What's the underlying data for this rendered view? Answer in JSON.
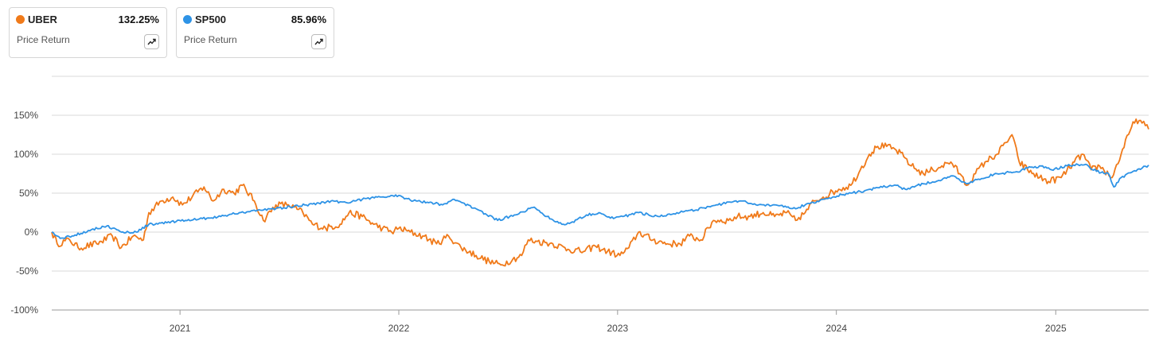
{
  "cards": [
    {
      "ticker": "UBER",
      "value": "132.25%",
      "subtitle": "Price Return",
      "color": "#f07a1a",
      "icon": "trending-up-icon"
    },
    {
      "ticker": "SP500",
      "value": "85.96%",
      "subtitle": "Price Return",
      "color": "#2e93e6",
      "icon": "trending-up-icon"
    }
  ],
  "chart_data": {
    "type": "line",
    "y_unit": "%",
    "ylim": [
      -100,
      200
    ],
    "y_ticks": [
      -100,
      -50,
      0,
      50,
      100,
      150
    ],
    "y_tick_labels": [
      "-100%",
      "-50%",
      "0%",
      "50%",
      "100%",
      "150%"
    ],
    "x_ticks": [
      "2021-01-01",
      "2022-01-01",
      "2023-01-01",
      "2024-01-01",
      "2025-01-01"
    ],
    "x_tick_labels": [
      "2021",
      "2022",
      "2023",
      "2024",
      "2025"
    ],
    "xlim": [
      "2020-06-01",
      "2025-06-05"
    ],
    "grid": true,
    "series": [
      {
        "name": "UBER",
        "color": "#f07a1a",
        "points": [
          [
            "2020-06-01",
            0
          ],
          [
            "2020-06-10",
            -15
          ],
          [
            "2020-07-01",
            -10
          ],
          [
            "2020-07-15",
            -20
          ],
          [
            "2020-08-15",
            -15
          ],
          [
            "2020-09-10",
            -5
          ],
          [
            "2020-09-25",
            -20
          ],
          [
            "2020-10-15",
            -5
          ],
          [
            "2020-11-01",
            -10
          ],
          [
            "2020-11-10",
            25
          ],
          [
            "2020-12-01",
            40
          ],
          [
            "2020-12-20",
            45
          ],
          [
            "2021-01-05",
            35
          ],
          [
            "2021-02-10",
            58
          ],
          [
            "2021-02-25",
            40
          ],
          [
            "2021-03-15",
            55
          ],
          [
            "2021-04-01",
            50
          ],
          [
            "2021-04-15",
            60
          ],
          [
            "2021-05-05",
            40
          ],
          [
            "2021-05-20",
            15
          ],
          [
            "2021-06-10",
            35
          ],
          [
            "2021-07-01",
            35
          ],
          [
            "2021-07-25",
            25
          ],
          [
            "2021-08-10",
            10
          ],
          [
            "2021-09-01",
            5
          ],
          [
            "2021-09-25",
            10
          ],
          [
            "2021-10-10",
            25
          ],
          [
            "2021-11-01",
            20
          ],
          [
            "2021-11-20",
            10
          ],
          [
            "2021-12-05",
            5
          ],
          [
            "2021-12-20",
            0
          ],
          [
            "2022-01-01",
            5
          ],
          [
            "2022-01-20",
            0
          ],
          [
            "2022-02-10",
            -5
          ],
          [
            "2022-03-05",
            -15
          ],
          [
            "2022-03-25",
            -5
          ],
          [
            "2022-04-15",
            -20
          ],
          [
            "2022-05-10",
            -30
          ],
          [
            "2022-06-01",
            -38
          ],
          [
            "2022-06-20",
            -42
          ],
          [
            "2022-07-10",
            -35
          ],
          [
            "2022-07-25",
            -30
          ],
          [
            "2022-08-05",
            -10
          ],
          [
            "2022-08-20",
            -12
          ],
          [
            "2022-09-15",
            -15
          ],
          [
            "2022-10-10",
            -22
          ],
          [
            "2022-11-05",
            -25
          ],
          [
            "2022-11-25",
            -18
          ],
          [
            "2022-12-15",
            -25
          ],
          [
            "2023-01-05",
            -30
          ],
          [
            "2023-01-20",
            -20
          ],
          [
            "2023-02-05",
            0
          ],
          [
            "2023-03-01",
            -10
          ],
          [
            "2023-03-25",
            -15
          ],
          [
            "2023-04-15",
            -15
          ],
          [
            "2023-05-01",
            -5
          ],
          [
            "2023-05-20",
            -10
          ],
          [
            "2023-06-10",
            15
          ],
          [
            "2023-07-05",
            15
          ],
          [
            "2023-07-20",
            20
          ],
          [
            "2023-08-10",
            20
          ],
          [
            "2023-09-01",
            25
          ],
          [
            "2023-09-20",
            20
          ],
          [
            "2023-10-10",
            25
          ],
          [
            "2023-10-25",
            15
          ],
          [
            "2023-11-10",
            25
          ],
          [
            "2023-11-25",
            40
          ],
          [
            "2023-12-10",
            45
          ],
          [
            "2024-01-05",
            55
          ],
          [
            "2024-01-25",
            60
          ],
          [
            "2024-02-10",
            80
          ],
          [
            "2024-02-25",
            100
          ],
          [
            "2024-03-10",
            110
          ],
          [
            "2024-03-25",
            110
          ],
          [
            "2024-04-10",
            105
          ],
          [
            "2024-04-25",
            95
          ],
          [
            "2024-05-05",
            85
          ],
          [
            "2024-05-25",
            75
          ],
          [
            "2024-06-10",
            80
          ],
          [
            "2024-06-25",
            85
          ],
          [
            "2024-07-10",
            90
          ],
          [
            "2024-07-25",
            75
          ],
          [
            "2024-08-05",
            60
          ],
          [
            "2024-08-20",
            75
          ],
          [
            "2024-09-05",
            90
          ],
          [
            "2024-09-25",
            100
          ],
          [
            "2024-10-10",
            115
          ],
          [
            "2024-10-20",
            125
          ],
          [
            "2024-11-01",
            90
          ],
          [
            "2024-11-15",
            80
          ],
          [
            "2024-12-05",
            70
          ],
          [
            "2024-12-20",
            65
          ],
          [
            "2025-01-10",
            70
          ],
          [
            "2025-02-01",
            90
          ],
          [
            "2025-02-15",
            100
          ],
          [
            "2025-03-01",
            80
          ],
          [
            "2025-03-15",
            85
          ],
          [
            "2025-04-05",
            70
          ],
          [
            "2025-04-20",
            100
          ],
          [
            "2025-05-05",
            130
          ],
          [
            "2025-05-15",
            145
          ],
          [
            "2025-05-25",
            140
          ],
          [
            "2025-06-05",
            132
          ]
        ]
      },
      {
        "name": "SP500",
        "color": "#2e93e6",
        "points": [
          [
            "2020-06-01",
            0
          ],
          [
            "2020-06-15",
            -8
          ],
          [
            "2020-07-05",
            -5
          ],
          [
            "2020-08-01",
            2
          ],
          [
            "2020-09-01",
            8
          ],
          [
            "2020-09-25",
            0
          ],
          [
            "2020-10-20",
            0
          ],
          [
            "2020-11-10",
            10
          ],
          [
            "2020-12-10",
            12
          ],
          [
            "2021-01-10",
            15
          ],
          [
            "2021-02-15",
            18
          ],
          [
            "2021-03-10",
            20
          ],
          [
            "2021-04-10",
            25
          ],
          [
            "2021-05-10",
            28
          ],
          [
            "2021-06-10",
            30
          ],
          [
            "2021-07-10",
            33
          ],
          [
            "2021-08-10",
            36
          ],
          [
            "2021-09-10",
            40
          ],
          [
            "2021-10-05",
            38
          ],
          [
            "2021-11-01",
            42
          ],
          [
            "2021-12-01",
            45
          ],
          [
            "2022-01-01",
            47
          ],
          [
            "2022-01-25",
            40
          ],
          [
            "2022-02-25",
            38
          ],
          [
            "2022-03-15",
            35
          ],
          [
            "2022-04-01",
            42
          ],
          [
            "2022-05-10",
            30
          ],
          [
            "2022-06-15",
            15
          ],
          [
            "2022-07-05",
            20
          ],
          [
            "2022-08-15",
            32
          ],
          [
            "2022-09-05",
            20
          ],
          [
            "2022-09-30",
            10
          ],
          [
            "2022-10-15",
            12
          ],
          [
            "2022-11-10",
            22
          ],
          [
            "2022-12-01",
            25
          ],
          [
            "2022-12-20",
            18
          ],
          [
            "2023-01-10",
            20
          ],
          [
            "2023-02-05",
            25
          ],
          [
            "2023-03-10",
            20
          ],
          [
            "2023-04-10",
            25
          ],
          [
            "2023-05-10",
            28
          ],
          [
            "2023-06-15",
            35
          ],
          [
            "2023-07-25",
            40
          ],
          [
            "2023-08-20",
            35
          ],
          [
            "2023-09-20",
            35
          ],
          [
            "2023-10-25",
            30
          ],
          [
            "2023-11-10",
            35
          ],
          [
            "2023-12-10",
            42
          ],
          [
            "2024-01-10",
            48
          ],
          [
            "2024-02-10",
            52
          ],
          [
            "2024-03-10",
            57
          ],
          [
            "2024-04-10",
            60
          ],
          [
            "2024-04-25",
            55
          ],
          [
            "2024-05-25",
            62
          ],
          [
            "2024-06-25",
            67
          ],
          [
            "2024-07-15",
            72
          ],
          [
            "2024-08-05",
            62
          ],
          [
            "2024-08-25",
            68
          ],
          [
            "2024-09-25",
            75
          ],
          [
            "2024-10-25",
            77
          ],
          [
            "2024-11-15",
            82
          ],
          [
            "2024-12-10",
            85
          ],
          [
            "2024-12-25",
            80
          ],
          [
            "2025-01-20",
            85
          ],
          [
            "2025-02-20",
            87
          ],
          [
            "2025-03-10",
            78
          ],
          [
            "2025-03-30",
            75
          ],
          [
            "2025-04-08",
            58
          ],
          [
            "2025-04-20",
            70
          ],
          [
            "2025-05-10",
            78
          ],
          [
            "2025-05-25",
            82
          ],
          [
            "2025-06-05",
            86
          ]
        ]
      }
    ]
  }
}
